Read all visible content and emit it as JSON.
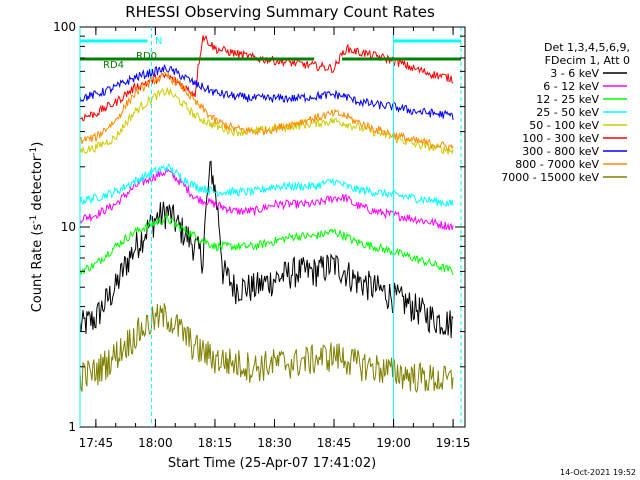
{
  "chart_data": {
    "type": "line",
    "title": "RHESSI Observing Summary Count Rates",
    "xlabel": "Start Time (25-Apr-07 17:41:02)",
    "ylabel": "Count Rate (s",
    "ylabel_sup": "-1",
    "ylabel_tail": " detector",
    "ylabel_close": ")",
    "y_scale": "log",
    "ylim": [
      1,
      100
    ],
    "xlim": [
      "17:41",
      "19:18"
    ],
    "x_ticks": [
      "17:45",
      "18:00",
      "18:15",
      "18:30",
      "18:45",
      "19:00",
      "19:15"
    ],
    "y_ticks": [
      "1",
      "10",
      "100"
    ],
    "grid": false,
    "legend_position": "right",
    "legend_header": [
      "Det 1,3,4,5,6,9,",
      "FDecim 1, Att 0"
    ],
    "series": [
      {
        "name": "3 - 6 keV",
        "color": "#000000",
        "points": [
          [
            "17:41",
            3.2
          ],
          [
            "17:45",
            3.5
          ],
          [
            "17:50",
            5
          ],
          [
            "17:55",
            8
          ],
          [
            "18:00",
            11
          ],
          [
            "18:03",
            12
          ],
          [
            "18:06",
            10
          ],
          [
            "18:10",
            8
          ],
          [
            "18:12",
            7
          ],
          [
            "18:14",
            20
          ],
          [
            "18:17",
            6
          ],
          [
            "18:20",
            5
          ],
          [
            "18:25",
            5
          ],
          [
            "18:30",
            5.5
          ],
          [
            "18:35",
            6
          ],
          [
            "18:40",
            6
          ],
          [
            "18:45",
            6.5
          ],
          [
            "18:48",
            6
          ],
          [
            "18:50",
            5.5
          ],
          [
            "18:55",
            5
          ],
          [
            "19:00",
            4.5
          ],
          [
            "19:05",
            4
          ],
          [
            "19:10",
            3.5
          ],
          [
            "19:15",
            3.3
          ]
        ]
      },
      {
        "name": "6 - 12 keV",
        "color": "#ff00ff",
        "points": [
          [
            "17:41",
            11
          ],
          [
            "17:45",
            11.5
          ],
          [
            "17:50",
            13
          ],
          [
            "17:55",
            16
          ],
          [
            "18:00",
            18
          ],
          [
            "18:03",
            19
          ],
          [
            "18:06",
            17
          ],
          [
            "18:10",
            14
          ],
          [
            "18:15",
            13
          ],
          [
            "18:20",
            12
          ],
          [
            "18:25",
            12
          ],
          [
            "18:30",
            13
          ],
          [
            "18:35",
            13
          ],
          [
            "18:40",
            13
          ],
          [
            "18:45",
            14
          ],
          [
            "18:48",
            14
          ],
          [
            "18:50",
            13
          ],
          [
            "18:55",
            12
          ],
          [
            "19:00",
            11.5
          ],
          [
            "19:05",
            11
          ],
          [
            "19:10",
            10.5
          ],
          [
            "19:15",
            10
          ]
        ]
      },
      {
        "name": "12 - 25 keV",
        "color": "#00ff00",
        "points": [
          [
            "17:41",
            6
          ],
          [
            "17:45",
            6.5
          ],
          [
            "17:50",
            8
          ],
          [
            "17:55",
            9.5
          ],
          [
            "18:00",
            10.5
          ],
          [
            "18:03",
            11
          ],
          [
            "18:06",
            10
          ],
          [
            "18:10",
            9
          ],
          [
            "18:15",
            8
          ],
          [
            "18:20",
            8
          ],
          [
            "18:25",
            8
          ],
          [
            "18:30",
            8.5
          ],
          [
            "18:35",
            9
          ],
          [
            "18:40",
            9
          ],
          [
            "18:45",
            9.5
          ],
          [
            "18:48",
            9
          ],
          [
            "18:50",
            8.5
          ],
          [
            "18:55",
            8
          ],
          [
            "19:00",
            7.5
          ],
          [
            "19:05",
            7
          ],
          [
            "19:10",
            6.5
          ],
          [
            "19:15",
            6
          ]
        ]
      },
      {
        "name": "25 - 50 keV",
        "color": "#00ffff",
        "points": [
          [
            "17:41",
            13.5
          ],
          [
            "17:45",
            14
          ],
          [
            "17:50",
            15
          ],
          [
            "17:55",
            17
          ],
          [
            "18:00",
            19
          ],
          [
            "18:03",
            20
          ],
          [
            "18:06",
            18
          ],
          [
            "18:10",
            16
          ],
          [
            "18:15",
            15
          ],
          [
            "18:20",
            15
          ],
          [
            "18:25",
            15
          ],
          [
            "18:30",
            16
          ],
          [
            "18:35",
            16
          ],
          [
            "18:40",
            16
          ],
          [
            "18:45",
            17
          ],
          [
            "18:48",
            16
          ],
          [
            "18:50",
            15.5
          ],
          [
            "18:55",
            15
          ],
          [
            "19:00",
            14.5
          ],
          [
            "19:05",
            14
          ],
          [
            "19:10",
            13.5
          ],
          [
            "19:15",
            13
          ]
        ]
      },
      {
        "name": "50 - 100 keV",
        "color": "#cccc00",
        "points": [
          [
            "17:41",
            24
          ],
          [
            "17:45",
            25
          ],
          [
            "17:50",
            28
          ],
          [
            "17:55",
            38
          ],
          [
            "18:00",
            45
          ],
          [
            "18:03",
            48
          ],
          [
            "18:06",
            43
          ],
          [
            "18:10",
            36
          ],
          [
            "18:15",
            32
          ],
          [
            "18:20",
            30
          ],
          [
            "18:25",
            30
          ],
          [
            "18:30",
            31
          ],
          [
            "18:35",
            32
          ],
          [
            "18:40",
            33
          ],
          [
            "18:45",
            34
          ],
          [
            "18:48",
            33
          ],
          [
            "18:50",
            32
          ],
          [
            "18:55",
            30
          ],
          [
            "19:00",
            28
          ],
          [
            "19:05",
            26
          ],
          [
            "19:10",
            25
          ],
          [
            "19:15",
            24
          ]
        ]
      },
      {
        "name": "100 - 300 keV",
        "color": "#ff0000",
        "points": [
          [
            "17:41",
            35
          ],
          [
            "17:45",
            37
          ],
          [
            "17:50",
            42
          ],
          [
            "17:55",
            50
          ],
          [
            "18:00",
            55
          ],
          [
            "18:03",
            57
          ],
          [
            "18:06",
            52
          ],
          [
            "18:10",
            46
          ],
          [
            "18:12",
            90
          ],
          [
            "18:15",
            78
          ],
          [
            "18:20",
            74
          ],
          [
            "18:25",
            70
          ],
          [
            "18:30",
            68
          ],
          [
            "18:35",
            66
          ],
          [
            "18:40",
            64
          ],
          [
            "18:45",
            62
          ],
          [
            "18:48",
            78
          ],
          [
            "18:50",
            76
          ],
          [
            "18:55",
            72
          ],
          [
            "19:00",
            68
          ],
          [
            "19:05",
            62
          ],
          [
            "19:10",
            58
          ],
          [
            "19:15",
            55
          ]
        ]
      },
      {
        "name": "300 - 800 keV",
        "color": "#0000ff",
        "points": [
          [
            "17:41",
            44
          ],
          [
            "17:45",
            46
          ],
          [
            "17:50",
            50
          ],
          [
            "17:55",
            56
          ],
          [
            "18:00",
            60
          ],
          [
            "18:03",
            62
          ],
          [
            "18:06",
            58
          ],
          [
            "18:10",
            52
          ],
          [
            "18:15",
            47
          ],
          [
            "18:20",
            45
          ],
          [
            "18:25",
            44
          ],
          [
            "18:30",
            44
          ],
          [
            "18:35",
            44
          ],
          [
            "18:40",
            45
          ],
          [
            "18:45",
            46
          ],
          [
            "18:48",
            45
          ],
          [
            "18:50",
            43
          ],
          [
            "18:55",
            41
          ],
          [
            "19:00",
            40
          ],
          [
            "19:05",
            38
          ],
          [
            "19:10",
            37
          ],
          [
            "19:15",
            36
          ]
        ]
      },
      {
        "name": "800 - 7000 keV",
        "color": "#ff8c00",
        "points": [
          [
            "17:41",
            27
          ],
          [
            "17:45",
            28
          ],
          [
            "17:50",
            34
          ],
          [
            "17:55",
            47
          ],
          [
            "18:00",
            55
          ],
          [
            "18:03",
            57
          ],
          [
            "18:06",
            52
          ],
          [
            "18:10",
            42
          ],
          [
            "18:15",
            34
          ],
          [
            "18:20",
            31
          ],
          [
            "18:25",
            30
          ],
          [
            "18:30",
            31
          ],
          [
            "18:35",
            33
          ],
          [
            "18:40",
            35
          ],
          [
            "18:45",
            37
          ],
          [
            "18:48",
            36
          ],
          [
            "18:50",
            34
          ],
          [
            "18:55",
            31
          ],
          [
            "19:00",
            29
          ],
          [
            "19:05",
            27
          ],
          [
            "19:10",
            26
          ],
          [
            "19:15",
            25
          ]
        ]
      },
      {
        "name": "7000 - 15000 keV",
        "color": "#808000",
        "points": [
          [
            "17:41",
            1.8
          ],
          [
            "17:45",
            1.9
          ],
          [
            "17:50",
            2.3
          ],
          [
            "17:55",
            2.9
          ],
          [
            "18:00",
            3.5
          ],
          [
            "18:03",
            3.6
          ],
          [
            "18:06",
            3.1
          ],
          [
            "18:10",
            2.5
          ],
          [
            "18:15",
            2.2
          ],
          [
            "18:20",
            2.1
          ],
          [
            "18:25",
            2.0
          ],
          [
            "18:30",
            2.1
          ],
          [
            "18:35",
            2.1
          ],
          [
            "18:40",
            2.2
          ],
          [
            "18:45",
            2.3
          ],
          [
            "18:48",
            2.2
          ],
          [
            "18:50",
            2.1
          ],
          [
            "18:55",
            2.0
          ],
          [
            "19:00",
            1.9
          ],
          [
            "19:05",
            1.8
          ],
          [
            "19:10",
            1.75
          ],
          [
            "19:15",
            1.7
          ]
        ]
      }
    ],
    "annotations": [
      {
        "text": "N",
        "color": "#00ffff"
      },
      {
        "text": "RD0",
        "color": "#008000"
      },
      {
        "text": "RD4",
        "color": "#008000"
      }
    ],
    "timestamp": "14-Oct-2021 19:52"
  }
}
